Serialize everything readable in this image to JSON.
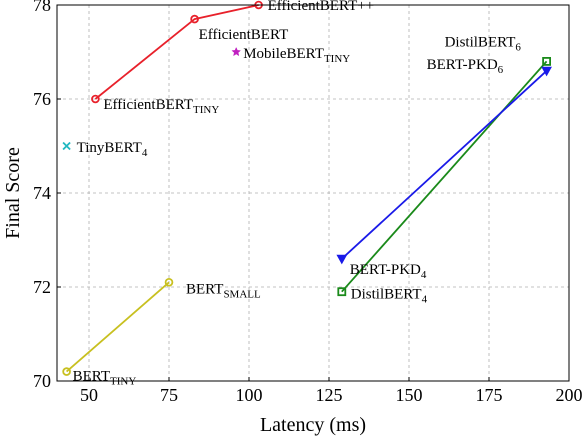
{
  "chart_data": {
    "type": "scatter",
    "title": "",
    "xlabel": "Latency (ms)",
    "ylabel": "Final Score",
    "xlim": [
      40,
      200
    ],
    "ylim": [
      70,
      78
    ],
    "xticks": [
      "50",
      "75",
      "100",
      "125",
      "150",
      "175",
      "200"
    ],
    "yticks": [
      "70",
      "72",
      "74",
      "76",
      "78"
    ],
    "grid": true,
    "series": [
      {
        "color": "#e8212b",
        "marker": "circle",
        "points": [
          {
            "x": 52,
            "y": 76.0,
            "label": "EfficientBERT",
            "sub": "TINY"
          },
          {
            "x": 83,
            "y": 77.7,
            "label": "EfficientBERT",
            "sub": ""
          },
          {
            "x": 103,
            "y": 78.0,
            "label": "EfficientBERT++",
            "sub": ""
          }
        ]
      },
      {
        "color": "#c8c020",
        "marker": "circle",
        "points": [
          {
            "x": 43,
            "y": 70.2,
            "label": "BERT",
            "sub": "TINY"
          },
          {
            "x": 75,
            "y": 72.1,
            "label": "BERT",
            "sub": "SMALL"
          }
        ]
      },
      {
        "color": "#1a8a1a",
        "marker": "square",
        "points": [
          {
            "x": 129,
            "y": 71.9,
            "label": "DistilBERT",
            "sub": "4"
          },
          {
            "x": 193,
            "y": 76.8,
            "label": "DistilBERT",
            "sub": "6"
          }
        ]
      },
      {
        "color": "#1a1ae8",
        "marker": "triangle-down",
        "points": [
          {
            "x": 129,
            "y": 72.6,
            "label": "BERT-PKD",
            "sub": "4"
          },
          {
            "x": 193,
            "y": 76.6,
            "label": "BERT-PKD",
            "sub": "6"
          }
        ]
      },
      {
        "color": "#c020c0",
        "marker": "star",
        "points": [
          {
            "x": 96,
            "y": 77.0,
            "label": "MobileBERT",
            "sub": "TINY"
          }
        ]
      },
      {
        "color": "#20b8c0",
        "marker": "x",
        "points": [
          {
            "x": 43,
            "y": 75.0,
            "label": "TinyBERT",
            "sub": "4"
          }
        ]
      }
    ]
  }
}
